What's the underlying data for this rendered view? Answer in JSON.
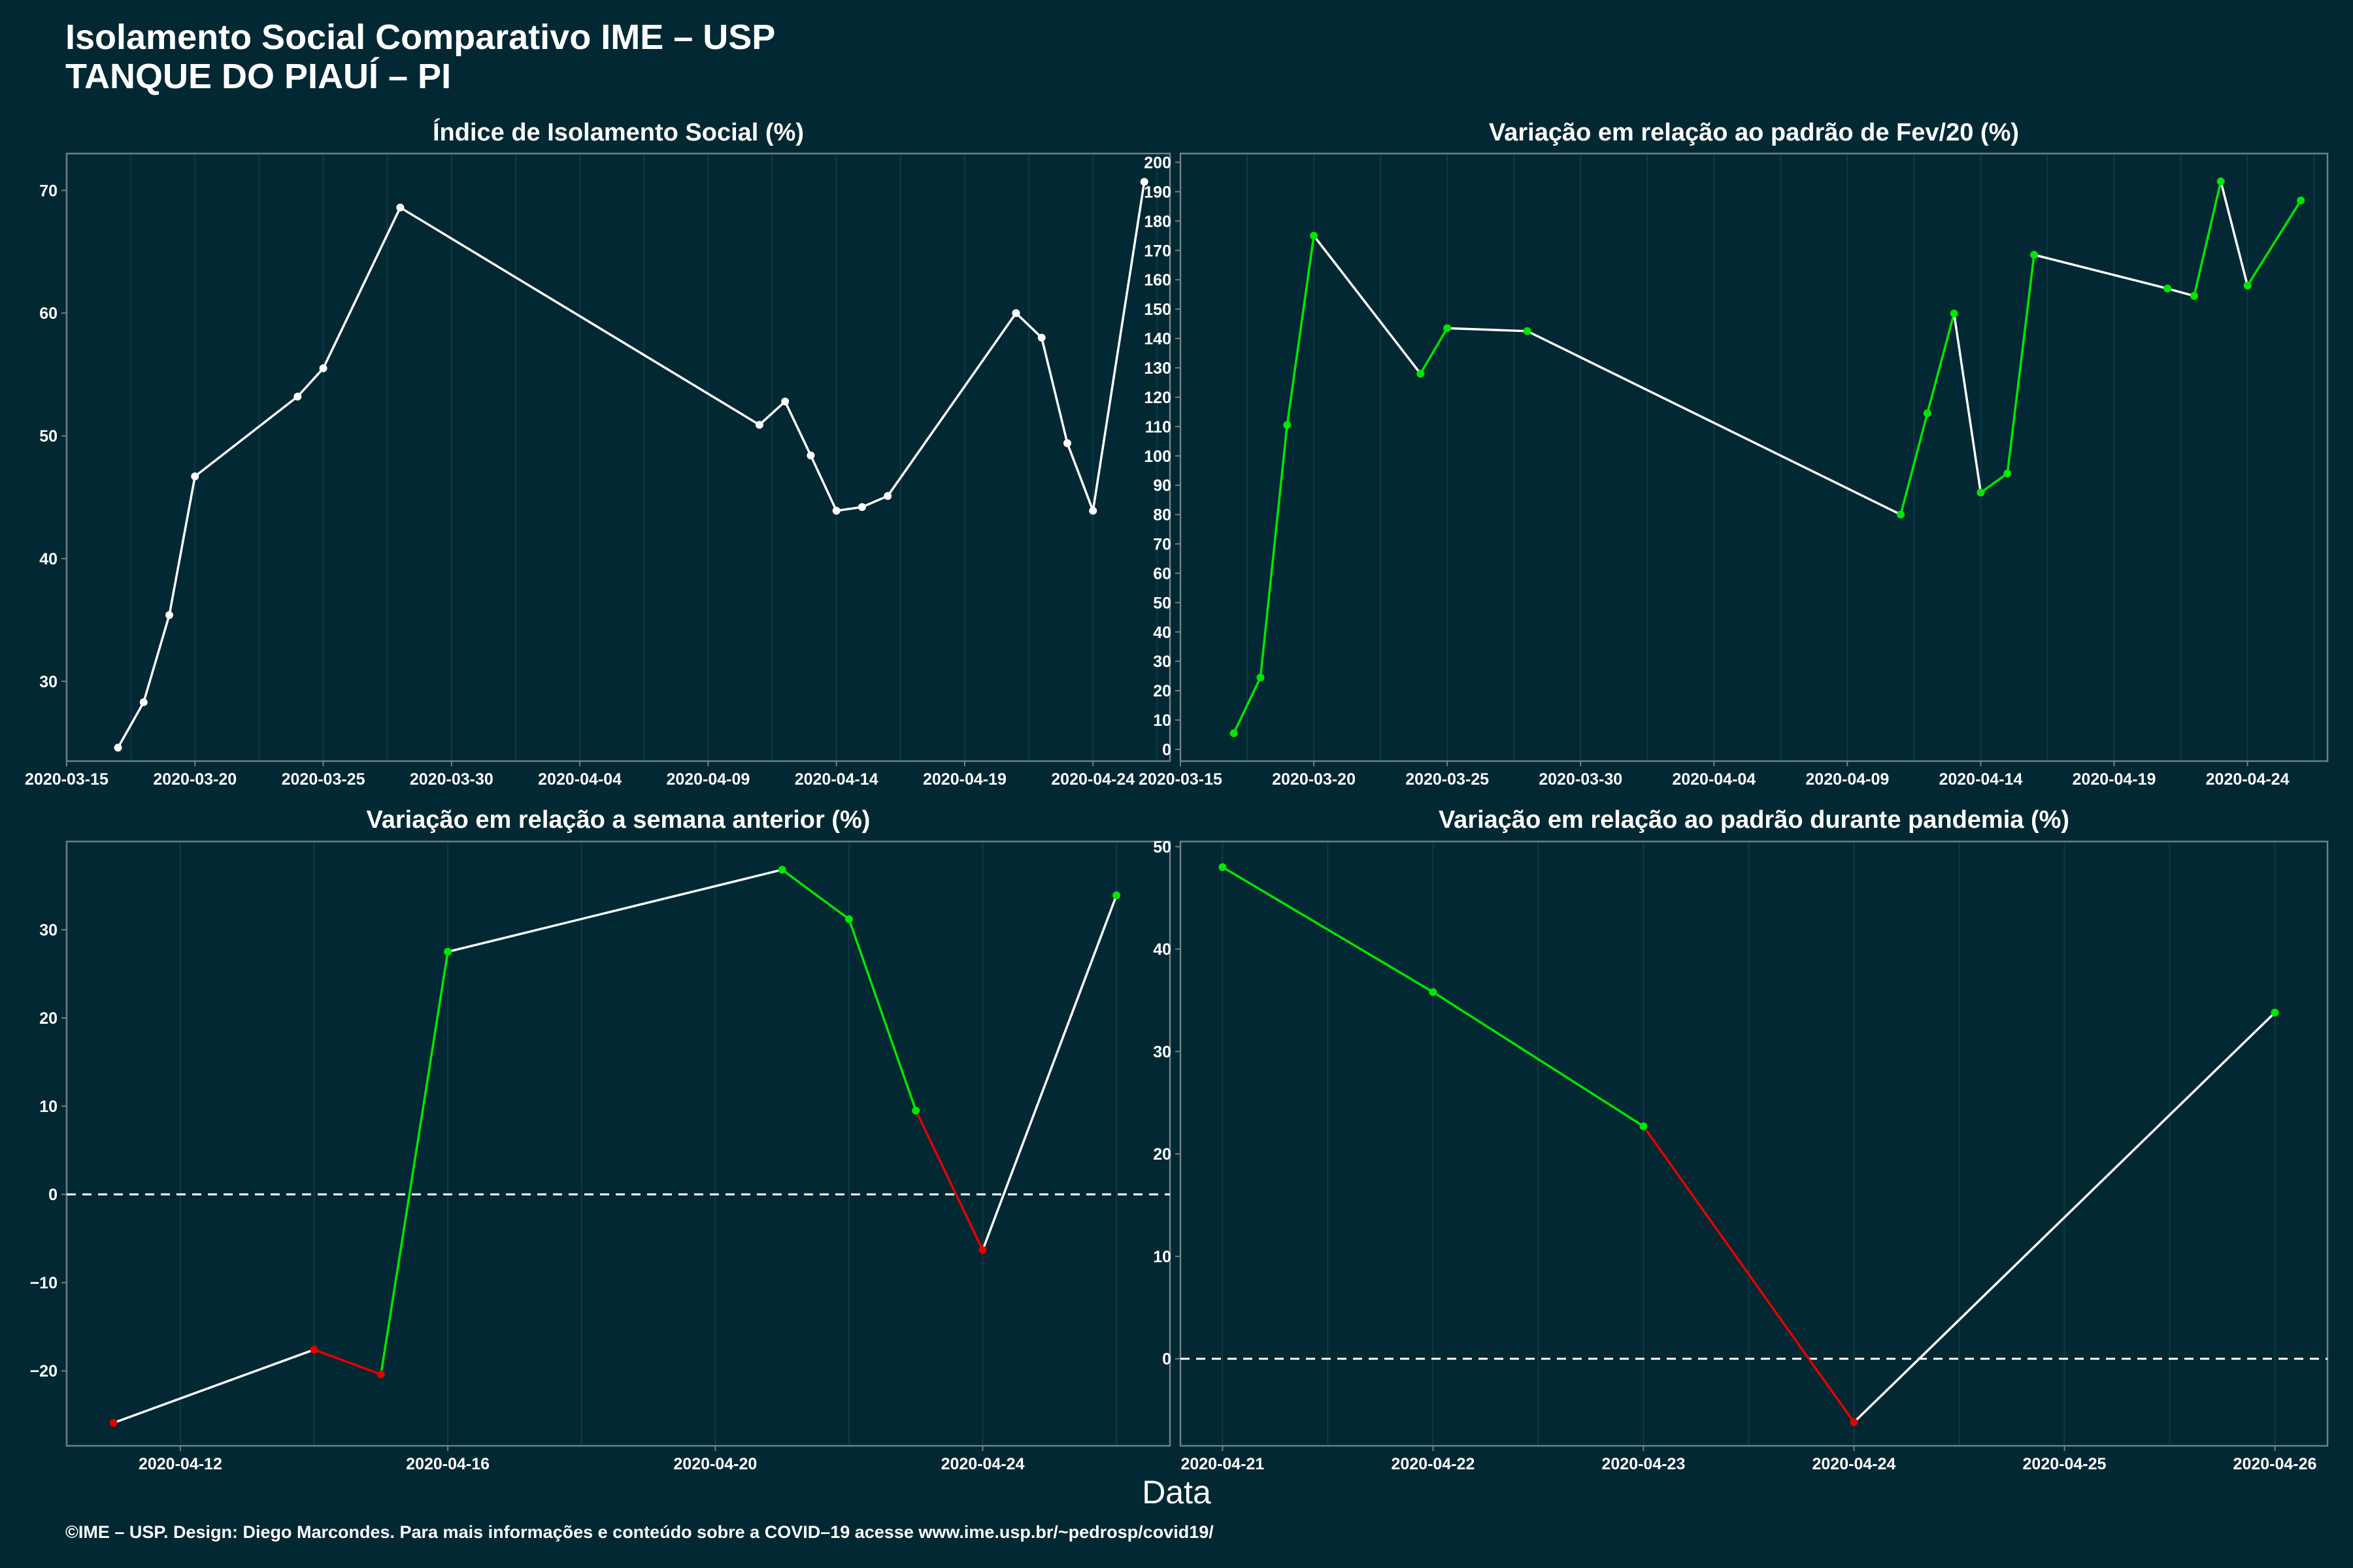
{
  "header": {
    "title": "Isolamento Social Comparativo IME – USP",
    "subtitle": "TANQUE DO PIAUÍ – PI"
  },
  "x_axis_title": "Data",
  "footer": "©IME – USP. Design: Diego Marcondes. Para mais informações e conteúdo sobre a COVID–19 acesse www.ime.usp.br/~pedrosp/covid19/",
  "colors": {
    "background": "#022833",
    "line_neutral": "#ffffff",
    "increase": "#00e600",
    "decrease": "#e60000",
    "panel_border": "#6e8088",
    "grid": "#0f3a44"
  },
  "chart_data": [
    {
      "type": "line",
      "title": "Índice de Isolamento Social (%)",
      "x_ticks": [
        "2020-03-15",
        "2020-03-20",
        "2020-03-25",
        "2020-03-30",
        "2020-04-04",
        "2020-04-09",
        "2020-04-14",
        "2020-04-19",
        "2020-04-24"
      ],
      "y_ticks": [
        30,
        40,
        50,
        60,
        70
      ],
      "xlim": [
        "2020-03-15",
        "2020-04-27"
      ],
      "ylim": [
        23.5,
        73
      ],
      "color_mode": "white",
      "x": [
        "2020-03-17",
        "2020-03-18",
        "2020-03-19",
        "2020-03-20",
        "2020-03-24",
        "2020-03-25",
        "2020-03-28",
        "2020-04-11",
        "2020-04-12",
        "2020-04-13",
        "2020-04-14",
        "2020-04-15",
        "2020-04-16",
        "2020-04-21",
        "2020-04-22",
        "2020-04-23",
        "2020-04-24",
        "2020-04-26"
      ],
      "y": [
        24.6,
        28.3,
        35.4,
        46.7,
        53.2,
        55.5,
        68.6,
        50.9,
        52.8,
        48.4,
        43.9,
        44.2,
        45.1,
        60.0,
        58.0,
        49.4,
        43.9,
        70.7
      ]
    },
    {
      "type": "line",
      "title": "Variação em relação ao padrão de Fev/20 (%)",
      "x_ticks": [
        "2020-03-15",
        "2020-03-20",
        "2020-03-25",
        "2020-03-30",
        "2020-04-04",
        "2020-04-09",
        "2020-04-14",
        "2020-04-19",
        "2020-04-24"
      ],
      "y_ticks": [
        0,
        10,
        20,
        30,
        40,
        50,
        60,
        70,
        80,
        90,
        100,
        110,
        120,
        130,
        140,
        150,
        160,
        170,
        180,
        190,
        200
      ],
      "xlim": [
        "2020-03-15",
        "2020-04-27"
      ],
      "ylim": [
        -4,
        203
      ],
      "color_mode": "pos",
      "x": [
        "2020-03-17",
        "2020-03-18",
        "2020-03-19",
        "2020-03-20",
        "2020-03-24",
        "2020-03-25",
        "2020-03-28",
        "2020-04-11",
        "2020-04-12",
        "2020-04-13",
        "2020-04-14",
        "2020-04-15",
        "2020-04-16",
        "2020-04-21",
        "2020-04-22",
        "2020-04-23",
        "2020-04-24",
        "2020-04-26"
      ],
      "y": [
        5.5,
        24.5,
        110.5,
        175,
        128,
        143.5,
        142.5,
        80,
        114.5,
        148.5,
        87.5,
        94,
        168.5,
        157,
        154.5,
        193.5,
        158,
        187
      ]
    },
    {
      "type": "line",
      "title": "Variação em relação a semana anterior (%)",
      "x_ticks": [
        "2020-04-12",
        "2020-04-16",
        "2020-04-20",
        "2020-04-24"
      ],
      "y_ticks": [
        -20,
        -10,
        0,
        10,
        20,
        30
      ],
      "xlim": [
        "2020-04-10.3",
        "2020-04-26.8"
      ],
      "ylim": [
        -28.5,
        40
      ],
      "color_mode": "pos",
      "zero_line": true,
      "x": [
        "2020-04-11",
        "2020-04-14",
        "2020-04-15",
        "2020-04-16",
        "2020-04-21",
        "2020-04-22",
        "2020-04-23",
        "2020-04-24",
        "2020-04-26"
      ],
      "y": [
        -25.9,
        -17.6,
        -20.4,
        27.5,
        36.8,
        31.2,
        9.5,
        -6.3,
        33.9
      ]
    },
    {
      "type": "line",
      "title": "Variação em relação ao padrão durante pandemia (%)",
      "x_ticks": [
        "2020-04-21",
        "2020-04-22",
        "2020-04-23",
        "2020-04-24",
        "2020-04-25",
        "2020-04-26"
      ],
      "y_ticks": [
        0,
        10,
        20,
        30,
        40,
        50
      ],
      "xlim": [
        "2020-04-20.8",
        "2020-04-26.25"
      ],
      "ylim": [
        -8.5,
        50.5
      ],
      "color_mode": "pos",
      "zero_line": true,
      "x": [
        "2020-04-21",
        "2020-04-22",
        "2020-04-23",
        "2020-04-24",
        "2020-04-26"
      ],
      "y": [
        48,
        35.8,
        22.7,
        -6.2,
        33.8
      ]
    }
  ]
}
